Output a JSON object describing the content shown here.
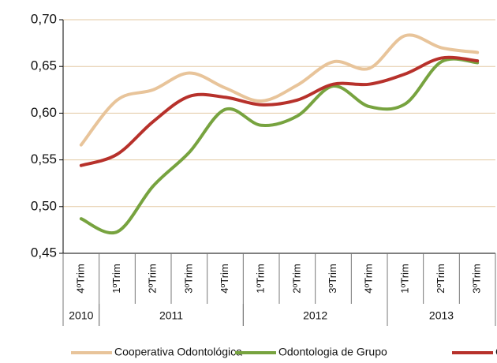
{
  "chart_data": {
    "type": "line",
    "smooth": true,
    "grid": true,
    "categories": [
      "4ºTrim",
      "1ºTrim",
      "2ºTrim",
      "3ºTrim",
      "4ºTrim",
      "1ºTrim",
      "2ºTrim",
      "3ºTrim",
      "4ºTrim",
      "1ºTrim",
      "2ºTrim",
      "3ºTrim"
    ],
    "years": [
      {
        "label": "2010",
        "count": 1
      },
      {
        "label": "2011",
        "count": 4
      },
      {
        "label": "2012",
        "count": 4
      },
      {
        "label": "2013",
        "count": 3
      }
    ],
    "series": [
      {
        "name": "Cooperativa Odontológica",
        "color": "#e8c49a",
        "values": [
          0.566,
          0.614,
          0.625,
          0.643,
          0.627,
          0.613,
          0.63,
          0.655,
          0.648,
          0.683,
          0.67,
          0.665
        ]
      },
      {
        "name": "Odontologia de Grupo",
        "color": "#77a33f",
        "values": [
          0.487,
          0.473,
          0.522,
          0.558,
          0.604,
          0.587,
          0.597,
          0.629,
          0.607,
          0.61,
          0.655,
          0.654
        ]
      },
      {
        "name": "OD",
        "color": "#b7312b",
        "values": [
          0.544,
          0.556,
          0.591,
          0.618,
          0.617,
          0.609,
          0.614,
          0.631,
          0.631,
          0.642,
          0.659,
          0.656
        ]
      }
    ],
    "ylim": [
      0.45,
      0.7
    ],
    "yticks": [
      {
        "value": 0.45,
        "label": "0,45"
      },
      {
        "value": 0.5,
        "label": "0,50"
      },
      {
        "value": 0.55,
        "label": "0,55"
      },
      {
        "value": 0.6,
        "label": "0,60"
      },
      {
        "value": 0.65,
        "label": "0,65"
      },
      {
        "value": 0.7,
        "label": "0,70"
      }
    ]
  }
}
